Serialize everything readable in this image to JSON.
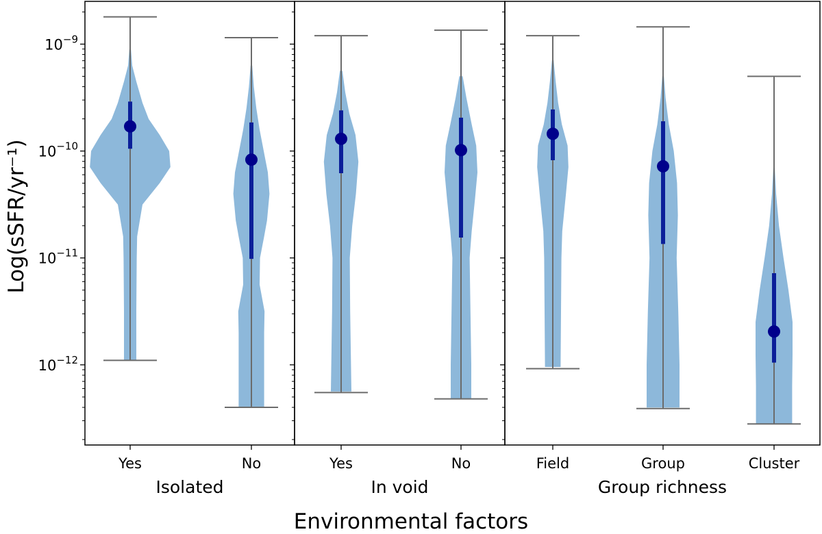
{
  "chart_data": {
    "type": "violin",
    "title": "",
    "xlabel": "Environmental factors",
    "ylabel": "Log(sSFR/yr⁻¹)",
    "yscale": "log",
    "ylim_log10": [
      -12.75,
      -8.6
    ],
    "y_ticks": [
      {
        "exp": -12,
        "label_base": "10",
        "label_exp": "−12"
      },
      {
        "exp": -11,
        "label_base": "10",
        "label_exp": "−11"
      },
      {
        "exp": -10,
        "label_base": "10",
        "label_exp": "−10"
      },
      {
        "exp": -9,
        "label_base": "10",
        "label_exp": "−9"
      }
    ],
    "colors": {
      "body": "#8db8da",
      "median": "#00008b",
      "iqr": "#0b1f99",
      "whisker": "#6b6b6b"
    },
    "panels": [
      {
        "group_label": "Isolated",
        "categories": [
          {
            "label": "Yes",
            "median": 1.7e-10,
            "q1": 1.05e-10,
            "q3": 2.9e-10,
            "min": 1.1e-12,
            "max": 1.8e-09,
            "density": [
              [
                -11.96,
                0.15
              ],
              [
                -11.5,
                0.15
              ],
              [
                -11.0,
                0.16
              ],
              [
                -10.8,
                0.17
              ],
              [
                -10.5,
                0.3
              ],
              [
                -10.3,
                0.72
              ],
              [
                -10.15,
                0.98
              ],
              [
                -10.0,
                0.95
              ],
              [
                -9.85,
                0.72
              ],
              [
                -9.7,
                0.45
              ],
              [
                -9.55,
                0.3
              ],
              [
                -9.35,
                0.15
              ],
              [
                -9.2,
                0.05
              ],
              [
                -9.05,
                0.02
              ]
            ]
          },
          {
            "label": "No",
            "median": 8.3e-11,
            "q1": 9.8e-12,
            "q3": 1.85e-10,
            "min": 4e-13,
            "max": 1.15e-09,
            "density": [
              [
                -12.4,
                0.31
              ],
              [
                -12.0,
                0.31
              ],
              [
                -11.7,
                0.31
              ],
              [
                -11.5,
                0.32
              ],
              [
                -11.25,
                0.2
              ],
              [
                -11.0,
                0.21
              ],
              [
                -10.8,
                0.31
              ],
              [
                -10.65,
                0.38
              ],
              [
                -10.4,
                0.44
              ],
              [
                -10.2,
                0.4
              ],
              [
                -10.0,
                0.3
              ],
              [
                -9.8,
                0.2
              ],
              [
                -9.6,
                0.12
              ],
              [
                -9.4,
                0.06
              ],
              [
                -9.2,
                0.02
              ]
            ]
          }
        ]
      },
      {
        "group_label": "In void",
        "categories": [
          {
            "label": "Yes",
            "median": 1.3e-10,
            "q1": 6.2e-11,
            "q3": 2.4e-10,
            "min": 5.5e-13,
            "max": 1.2e-09,
            "density": [
              [
                -12.25,
                0.25
              ],
              [
                -12.0,
                0.24
              ],
              [
                -11.5,
                0.22
              ],
              [
                -11.0,
                0.21
              ],
              [
                -10.7,
                0.27
              ],
              [
                -10.4,
                0.36
              ],
              [
                -10.1,
                0.42
              ],
              [
                -9.85,
                0.35
              ],
              [
                -9.65,
                0.2
              ],
              [
                -9.45,
                0.1
              ],
              [
                -9.25,
                0.03
              ]
            ]
          },
          {
            "label": "No",
            "median": 1.02e-10,
            "q1": 1.55e-11,
            "q3": 2.05e-10,
            "min": 4.8e-13,
            "max": 1.35e-09,
            "density": [
              [
                -12.32,
                0.25
              ],
              [
                -12.0,
                0.25
              ],
              [
                -11.5,
                0.23
              ],
              [
                -11.0,
                0.21
              ],
              [
                -10.75,
                0.26
              ],
              [
                -10.45,
                0.34
              ],
              [
                -10.2,
                0.4
              ],
              [
                -9.95,
                0.37
              ],
              [
                -9.75,
                0.26
              ],
              [
                -9.5,
                0.13
              ],
              [
                -9.3,
                0.04
              ]
            ]
          }
        ]
      },
      {
        "group_label": "Group richness",
        "categories": [
          {
            "label": "Field",
            "median": 1.45e-10,
            "q1": 8.2e-11,
            "q3": 2.45e-10,
            "min": 9.2e-13,
            "max": 1.2e-09,
            "density": [
              [
                -12.02,
                0.19
              ],
              [
                -11.5,
                0.2
              ],
              [
                -11.0,
                0.21
              ],
              [
                -10.75,
                0.23
              ],
              [
                -10.4,
                0.32
              ],
              [
                -10.15,
                0.38
              ],
              [
                -9.95,
                0.36
              ],
              [
                -9.75,
                0.22
              ],
              [
                -9.55,
                0.13
              ],
              [
                -9.35,
                0.07
              ],
              [
                -9.15,
                0.02
              ]
            ]
          },
          {
            "label": "Group",
            "median": 7.2e-11,
            "q1": 1.35e-11,
            "q3": 1.9e-10,
            "min": 3.9e-13,
            "max": 1.45e-09,
            "density": [
              [
                -12.4,
                0.4
              ],
              [
                -12.0,
                0.4
              ],
              [
                -11.5,
                0.37
              ],
              [
                -11.0,
                0.33
              ],
              [
                -10.6,
                0.36
              ],
              [
                -10.3,
                0.34
              ],
              [
                -10.0,
                0.26
              ],
              [
                -9.75,
                0.14
              ],
              [
                -9.5,
                0.06
              ],
              [
                -9.3,
                0.02
              ]
            ]
          },
          {
            "label": "Cluster",
            "median": 2.05e-12,
            "q1": 1.05e-12,
            "q3": 7.2e-12,
            "min": 2.8e-13,
            "max": 5e-10,
            "density": [
              [
                -12.55,
                0.44
              ],
              [
                -12.2,
                0.44
              ],
              [
                -11.9,
                0.45
              ],
              [
                -11.6,
                0.45
              ],
              [
                -11.3,
                0.35
              ],
              [
                -11.0,
                0.23
              ],
              [
                -10.7,
                0.12
              ],
              [
                -10.4,
                0.05
              ],
              [
                -10.1,
                0.01
              ]
            ]
          }
        ]
      }
    ]
  }
}
